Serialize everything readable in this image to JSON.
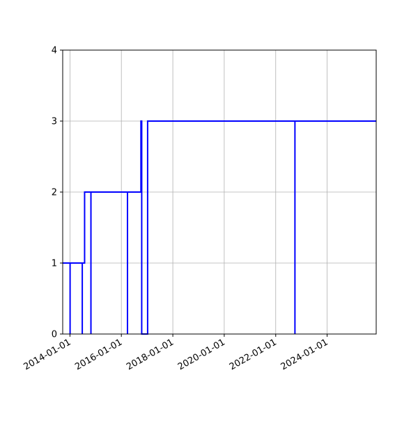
{
  "chart_data": {
    "type": "line",
    "style": "step",
    "title": "",
    "xlabel": "",
    "ylabel": "",
    "xlim": [
      "2013-09-20",
      "2025-11-28"
    ],
    "ylim": [
      0,
      4
    ],
    "grid": true,
    "line_color": "#0000ff",
    "x_ticks": [
      "2014-01-01",
      "2016-01-01",
      "2018-01-01",
      "2020-01-01",
      "2022-01-01",
      "2024-01-01"
    ],
    "y_ticks": [
      "0",
      "1",
      "2",
      "3",
      "4"
    ],
    "series": [
      {
        "points": [
          [
            "2013-09-20",
            1
          ],
          [
            "2014-01-03",
            1
          ],
          [
            "2014-01-03",
            0
          ],
          [
            "2014-01-03",
            1
          ],
          [
            "2014-06-25",
            1
          ],
          [
            "2014-06-25",
            0
          ],
          [
            "2014-06-25",
            1
          ],
          [
            "2014-07-28",
            1
          ],
          [
            "2014-07-28",
            2
          ],
          [
            "2014-10-26",
            2
          ],
          [
            "2014-10-26",
            0
          ],
          [
            "2014-10-26",
            2
          ],
          [
            "2016-03-28",
            2
          ],
          [
            "2016-03-28",
            0
          ],
          [
            "2016-03-28",
            2
          ],
          [
            "2016-10-05",
            2
          ],
          [
            "2016-10-05",
            3
          ],
          [
            "2016-10-16",
            3
          ],
          [
            "2016-10-16",
            0
          ],
          [
            "2017-01-08",
            0
          ],
          [
            "2017-01-08",
            3
          ],
          [
            "2022-10-01",
            3
          ],
          [
            "2022-10-01",
            0
          ],
          [
            "2022-10-01",
            3
          ],
          [
            "2025-11-28",
            3
          ]
        ]
      }
    ]
  }
}
